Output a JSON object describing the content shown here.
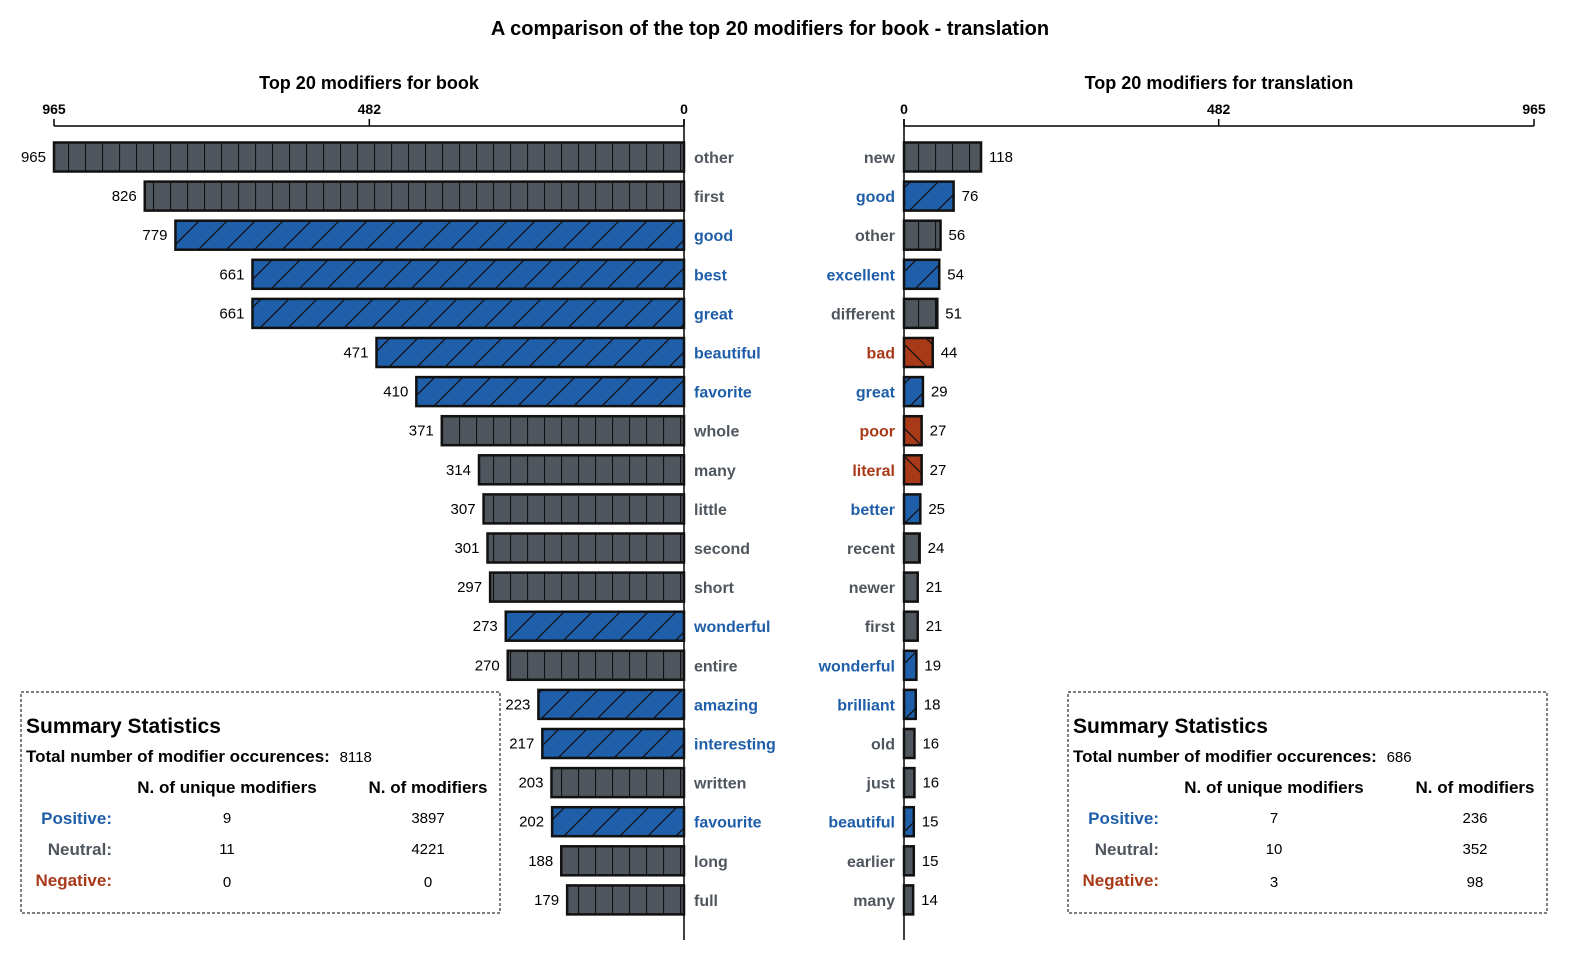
{
  "colors": {
    "positive": "#1f5ea8",
    "neutral": "#4f565e",
    "negative": "#a83a1a"
  },
  "chart_data": {
    "title": "A comparison of the top 20 modifiers for book - translation",
    "type": "bar",
    "orientation": "horizontal",
    "panels": [
      {
        "name": "book",
        "subtitle": "Top 20 modifiers for book",
        "direction": "left",
        "xlim": [
          0,
          965
        ],
        "ticks": [
          965,
          482,
          0
        ],
        "categories": [
          "other",
          "first",
          "good",
          "best",
          "great",
          "beautiful",
          "favorite",
          "whole",
          "many",
          "little",
          "second",
          "short",
          "wonderful",
          "entire",
          "amazing",
          "interesting",
          "written",
          "favourite",
          "long",
          "full"
        ],
        "values": [
          965,
          826,
          779,
          661,
          661,
          471,
          410,
          371,
          314,
          307,
          301,
          297,
          273,
          270,
          223,
          217,
          203,
          202,
          188,
          179
        ],
        "sentiment": [
          "neutral",
          "neutral",
          "positive",
          "positive",
          "positive",
          "positive",
          "positive",
          "neutral",
          "neutral",
          "neutral",
          "neutral",
          "neutral",
          "positive",
          "neutral",
          "positive",
          "positive",
          "neutral",
          "positive",
          "neutral",
          "neutral"
        ],
        "summary": {
          "heading": "Summary Statistics",
          "total_label": "Total number of modifier occurences:",
          "total_value": "8118",
          "col_unique": "N. of unique modifiers",
          "col_count": "N. of modifiers",
          "rows": [
            {
              "label": "Positive:",
              "sentiment": "positive",
              "unique": "9",
              "count": "3897"
            },
            {
              "label": "Neutral:",
              "sentiment": "neutral",
              "unique": "11",
              "count": "4221"
            },
            {
              "label": "Negative:",
              "sentiment": "negative",
              "unique": "0",
              "count": "0"
            }
          ]
        }
      },
      {
        "name": "translation",
        "subtitle": "Top 20 modifiers for translation",
        "direction": "right",
        "xlim": [
          0,
          965
        ],
        "ticks": [
          0,
          482,
          965
        ],
        "categories": [
          "new",
          "good",
          "other",
          "excellent",
          "different",
          "bad",
          "great",
          "poor",
          "literal",
          "better",
          "recent",
          "newer",
          "first",
          "wonderful",
          "brilliant",
          "old",
          "just",
          "beautiful",
          "earlier",
          "many"
        ],
        "values": [
          118,
          76,
          56,
          54,
          51,
          44,
          29,
          27,
          27,
          25,
          24,
          21,
          21,
          19,
          18,
          16,
          16,
          15,
          15,
          14
        ],
        "sentiment": [
          "neutral",
          "positive",
          "neutral",
          "positive",
          "neutral",
          "negative",
          "positive",
          "negative",
          "negative",
          "positive",
          "neutral",
          "neutral",
          "neutral",
          "positive",
          "positive",
          "neutral",
          "neutral",
          "positive",
          "neutral",
          "neutral"
        ],
        "summary": {
          "heading": "Summary Statistics",
          "total_label": "Total number of modifier occurences:",
          "total_value": "686",
          "col_unique": "N. of unique modifiers",
          "col_count": "N. of modifiers",
          "rows": [
            {
              "label": "Positive:",
              "sentiment": "positive",
              "unique": "7",
              "count": "236"
            },
            {
              "label": "Neutral:",
              "sentiment": "neutral",
              "unique": "10",
              "count": "352"
            },
            {
              "label": "Negative:",
              "sentiment": "negative",
              "unique": "3",
              "count": "98"
            }
          ]
        }
      }
    ]
  }
}
